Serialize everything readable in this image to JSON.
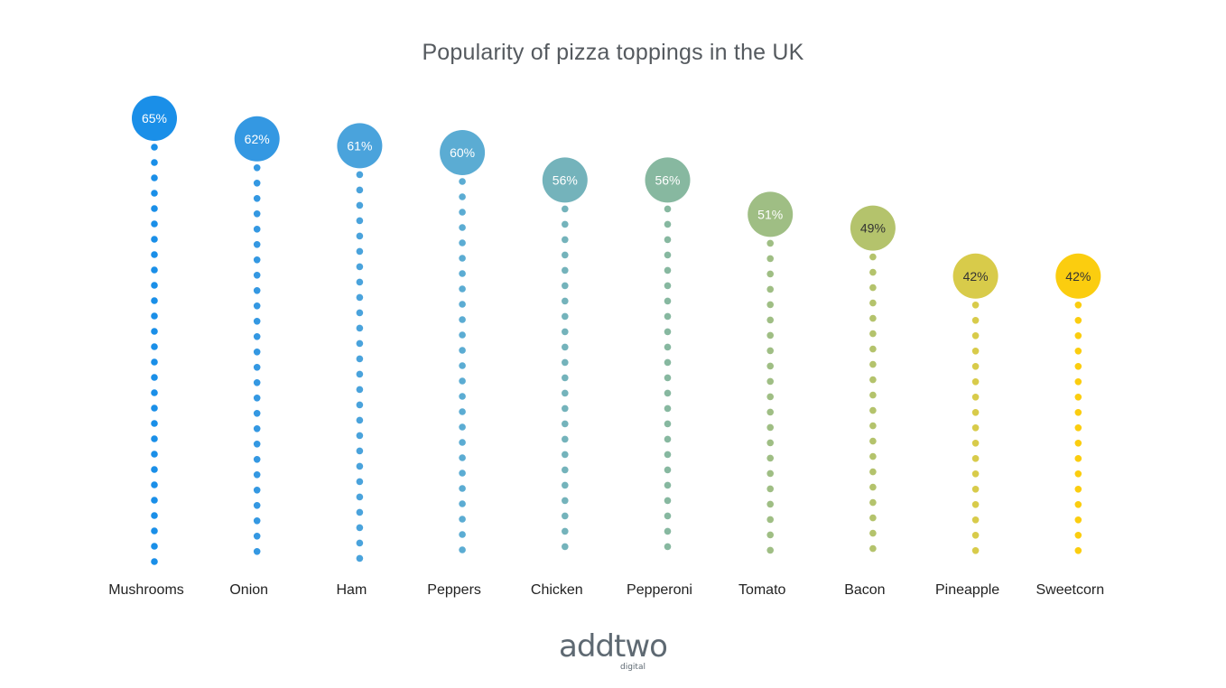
{
  "chart_data": {
    "type": "lollipop",
    "title": "Popularity of pizza toppings in the UK",
    "xlabel": "",
    "ylabel": "",
    "unit": "%",
    "categories": [
      "Mushrooms",
      "Onion",
      "Ham",
      "Peppers",
      "Chicken",
      "Pepperoni",
      "Tomato",
      "Bacon",
      "Pineapple",
      "Sweetcorn"
    ],
    "values": [
      65,
      62,
      61,
      60,
      56,
      56,
      51,
      49,
      42,
      42
    ],
    "value_labels": [
      "65%",
      "62%",
      "61%",
      "60%",
      "56%",
      "56%",
      "51%",
      "49%",
      "42%",
      "42%"
    ],
    "colors": [
      "#1a8fe8",
      "#3498e2",
      "#4aa3dc",
      "#5bacd3",
      "#74b3bb",
      "#87b8a0",
      "#9fbe84",
      "#b4c36c",
      "#d8cb4a",
      "#fbcd0f"
    ],
    "label_colors": [
      "#ffffff",
      "#ffffff",
      "#ffffff",
      "#ffffff",
      "#ffffff",
      "#ffffff",
      "#ffffff",
      "#333333",
      "#333333",
      "#333333"
    ],
    "grid": false,
    "legend": "none"
  },
  "logo": {
    "main": "addtwo",
    "sub": "digital"
  }
}
